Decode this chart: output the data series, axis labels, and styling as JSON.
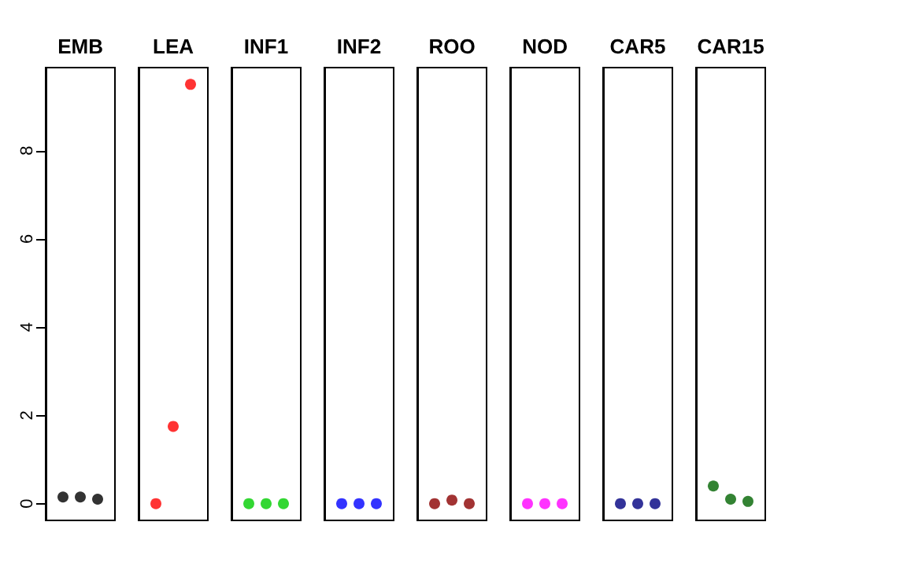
{
  "chart_data": {
    "type": "scatter",
    "categories": [
      "EMB",
      "LEA",
      "INF1",
      "INF2",
      "ROO",
      "NOD",
      "CAR5",
      "CAR15"
    ],
    "series": [
      {
        "values": [
          0.15,
          0,
          0,
          0,
          0,
          0,
          0,
          0.4
        ],
        "colors": [
          "#000000",
          "#ff0000",
          "#00cd00",
          "#0000ff",
          "#8b0000",
          "#ff00ff",
          "#000080",
          "#006400"
        ]
      },
      {
        "values": [
          0.15,
          1.75,
          0,
          0,
          0.08,
          0,
          0,
          0.1
        ],
        "colors": [
          "#000000",
          "#ff0000",
          "#00cd00",
          "#0000ff",
          "#8b0000",
          "#ff00ff",
          "#000080",
          "#006400"
        ]
      },
      {
        "values": [
          0.1,
          9.5,
          0,
          0,
          0,
          0,
          0,
          0.05
        ],
        "colors": [
          "#000000",
          "#ff0000",
          "#00cd00",
          "#0000ff",
          "#8b0000",
          "#ff00ff",
          "#000080",
          "#006400"
        ]
      }
    ],
    "ylim": [
      -0.38,
      9.88
    ],
    "yticks": [
      0,
      2,
      4,
      6,
      8
    ],
    "marker": "circle",
    "grid": false
  }
}
